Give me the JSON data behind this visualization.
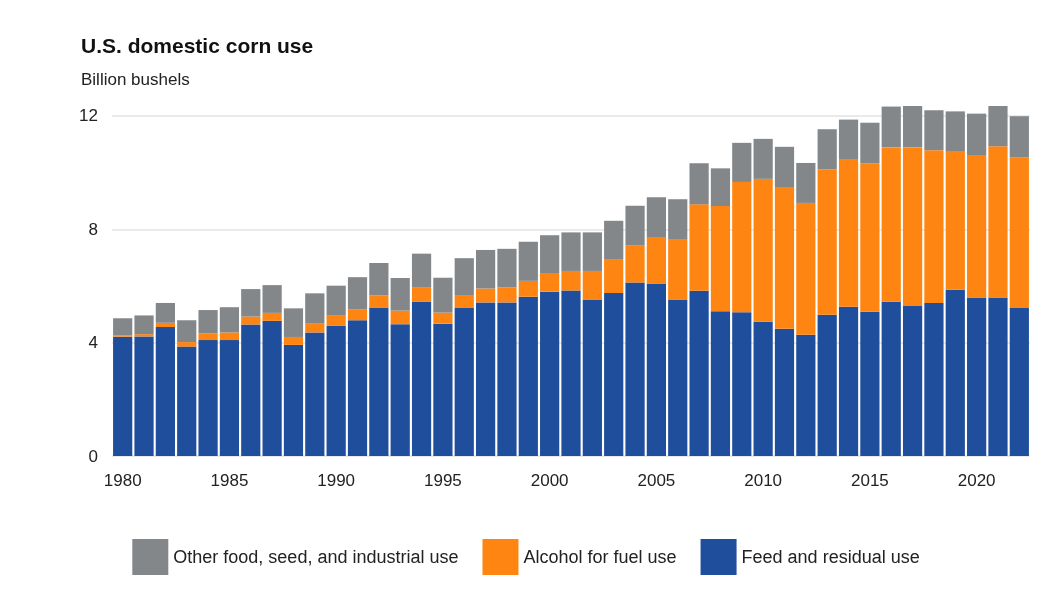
{
  "chart_data": {
    "type": "bar",
    "title": "U.S. domestic corn use",
    "subtitle": "Billion bushels",
    "categories": [
      "1980",
      null,
      null,
      null,
      null,
      "1985",
      null,
      null,
      null,
      null,
      "1990",
      null,
      null,
      null,
      null,
      "1995",
      null,
      null,
      null,
      null,
      "2000",
      null,
      null,
      null,
      null,
      "2005",
      null,
      null,
      null,
      null,
      "2010",
      null,
      null,
      null,
      null,
      "2015",
      null,
      null,
      null,
      null,
      "2020",
      null,
      null
    ],
    "stacked": true,
    "series": [
      {
        "name": "Feed and residual use",
        "color": "#1f4e9c",
        "values": [
          4.21,
          4.22,
          4.55,
          3.86,
          4.09,
          4.09,
          4.64,
          4.77,
          3.92,
          4.36,
          4.59,
          4.79,
          5.24,
          4.65,
          5.44,
          4.67,
          5.24,
          5.42,
          5.42,
          5.62,
          5.8,
          5.84,
          5.52,
          5.75,
          6.12,
          6.09,
          5.52,
          5.83,
          5.11,
          5.07,
          4.74,
          4.49,
          4.28,
          4.98,
          5.27,
          5.09,
          5.44,
          5.29,
          5.4,
          5.87,
          5.59,
          5.59,
          5.22
        ]
      },
      {
        "name": "Alcohol for fuel use",
        "color": "#ff8512",
        "values": [
          0.04,
          0.08,
          0.15,
          0.16,
          0.23,
          0.27,
          0.28,
          0.28,
          0.28,
          0.33,
          0.36,
          0.39,
          0.43,
          0.48,
          0.52,
          0.39,
          0.44,
          0.49,
          0.53,
          0.56,
          0.63,
          0.69,
          1.01,
          1.2,
          1.32,
          1.61,
          2.11,
          3.05,
          3.71,
          4.6,
          5.04,
          5.0,
          4.65,
          5.14,
          5.21,
          5.24,
          5.45,
          5.6,
          5.39,
          4.89,
          5.03,
          5.34,
          5.32
        ]
      },
      {
        "name": "Other food, seed, and industrial use",
        "color": "#838789",
        "values": [
          0.61,
          0.66,
          0.7,
          0.77,
          0.83,
          0.89,
          0.97,
          0.98,
          1.01,
          1.05,
          1.06,
          1.13,
          1.14,
          1.15,
          1.18,
          1.23,
          1.3,
          1.36,
          1.36,
          1.38,
          1.36,
          1.36,
          1.36,
          1.35,
          1.39,
          1.43,
          1.43,
          1.45,
          1.33,
          1.38,
          1.41,
          1.42,
          1.41,
          1.41,
          1.39,
          1.43,
          1.44,
          1.46,
          1.41,
          1.4,
          1.46,
          1.42,
          1.45
        ]
      }
    ],
    "ylim": [
      0,
      12.35
    ],
    "yticks": [
      0,
      4,
      8,
      12
    ],
    "grid": "y",
    "legend": "bottom"
  }
}
